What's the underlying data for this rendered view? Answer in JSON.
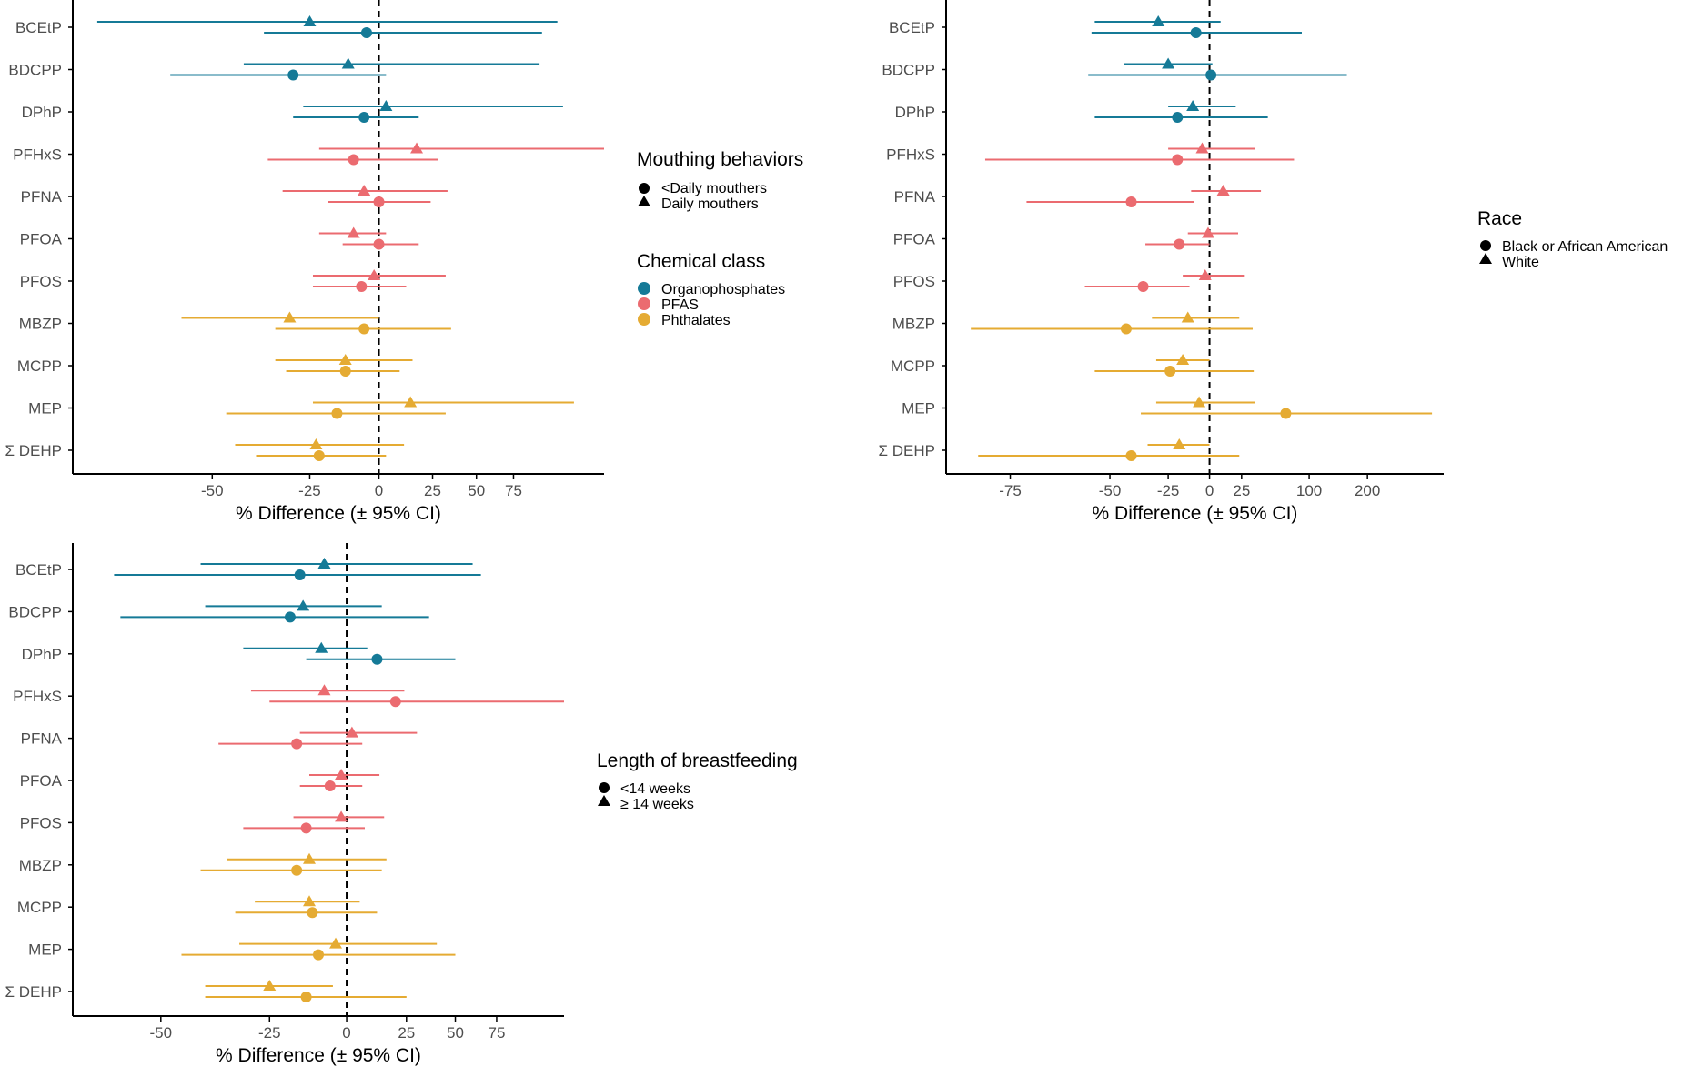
{
  "colors": {
    "Organophosphates": "#157a97",
    "PFAS": "#eb6b70",
    "Phthalates": "#e5ab33"
  },
  "chemical_legend": {
    "title": "Chemical class",
    "items": [
      {
        "label": "Organophosphates",
        "class": "Organophosphates"
      },
      {
        "label": "PFAS",
        "class": "PFAS"
      },
      {
        "label": "Phthalates",
        "class": "Phthalates"
      }
    ]
  },
  "chart_data": [
    {
      "type": "forest",
      "xlabel": "% Difference (± 95% CI)",
      "scale": "log1p",
      "xlim": [
        -72,
        155
      ],
      "xticks": [
        -50,
        -25,
        0,
        25,
        50,
        75
      ],
      "tick_labels": [
        "-50",
        "-25",
        "0",
        "25",
        "50",
        "75"
      ],
      "reference_line": 0,
      "legend": {
        "title": "Mouthing behaviors",
        "items": [
          {
            "label": "<Daily mouthers",
            "shape": "circle"
          },
          {
            "label": "Daily mouthers",
            "shape": "triangle"
          }
        ]
      },
      "categories": [
        {
          "label": "BCEtP",
          "class": "Organophosphates",
          "circle": [
            -5,
            -38,
            97
          ],
          "triangle": [
            -25,
            -69,
            110
          ]
        },
        {
          "label": "BDCPP",
          "class": "Organophosphates",
          "circle": [
            -30,
            -58,
            3
          ],
          "triangle": [
            -12,
            -43,
            95
          ]
        },
        {
          "label": "DPhP",
          "class": "Organophosphates",
          "circle": [
            -6,
            -30,
            18
          ],
          "triangle": [
            3,
            -27,
            115
          ]
        },
        {
          "label": "PFHxS",
          "class": "PFAS",
          "circle": [
            -10,
            -37,
            28
          ],
          "triangle": [
            17,
            -22,
            155
          ]
        },
        {
          "label": "PFNA",
          "class": "PFAS",
          "circle": [
            0,
            -19,
            24
          ],
          "triangle": [
            -6,
            -33,
            33
          ]
        },
        {
          "label": "PFOA",
          "class": "PFAS",
          "circle": [
            0,
            -14,
            18
          ],
          "triangle": [
            -10,
            -22,
            3
          ]
        },
        {
          "label": "PFOS",
          "class": "PFAS",
          "circle": [
            -7,
            -24,
            12
          ],
          "triangle": [
            -2,
            -24,
            32
          ]
        },
        {
          "label": "MBZP",
          "class": "Phthalates",
          "circle": [
            -6,
            -35,
            35
          ],
          "triangle": [
            -31,
            -56,
            0
          ]
        },
        {
          "label": "MCPP",
          "class": "Phthalates",
          "circle": [
            -13,
            -32,
            9
          ],
          "triangle": [
            -13,
            -35,
            15
          ]
        },
        {
          "label": "MEP",
          "class": "Phthalates",
          "circle": [
            -16,
            -47,
            32
          ],
          "triangle": [
            14,
            -24,
            125
          ]
        },
        {
          "label": "Σ DEHP",
          "class": "Phthalates",
          "circle": [
            -22,
            -40,
            3
          ],
          "triangle": [
            -23,
            -45,
            11
          ]
        }
      ]
    },
    {
      "type": "forest",
      "xlabel": "% Difference (± 95% CI)",
      "scale": "log1p",
      "xlim": [
        -84,
        410
      ],
      "xticks": [
        -75,
        -50,
        -25,
        0,
        25,
        100,
        200
      ],
      "tick_labels": [
        "-75",
        "-50",
        "-25",
        "0",
        "25",
        "100",
        "200"
      ],
      "reference_line": 0,
      "legend": {
        "title": "Race",
        "items": [
          {
            "label": "Black or African American",
            "shape": "circle"
          },
          {
            "label": "White",
            "shape": "triangle"
          }
        ]
      },
      "categories": [
        {
          "label": "BCEtP",
          "class": "Organophosphates",
          "circle": [
            -9,
            -56,
            90
          ],
          "triangle": [
            -30,
            -55,
            8
          ]
        },
        {
          "label": "BDCPP",
          "class": "Organophosphates",
          "circle": [
            1,
            -57,
            160
          ],
          "triangle": [
            -25,
            -45,
            2
          ]
        },
        {
          "label": "DPhP",
          "class": "Organophosphates",
          "circle": [
            -20,
            -55,
            50
          ],
          "triangle": [
            -11,
            -25,
            20
          ]
        },
        {
          "label": "PFHxS",
          "class": "PFAS",
          "circle": [
            -20,
            -79,
            80
          ],
          "triangle": [
            -5,
            -25,
            37
          ]
        },
        {
          "label": "PFNA",
          "class": "PFAS",
          "circle": [
            -42,
            -72,
            -10
          ],
          "triangle": [
            10,
            -12,
            43
          ]
        },
        {
          "label": "PFOA",
          "class": "PFAS",
          "circle": [
            -19,
            -36,
            0
          ],
          "triangle": [
            -1,
            -14,
            22
          ]
        },
        {
          "label": "PFOS",
          "class": "PFAS",
          "circle": [
            -37,
            -58,
            -13
          ],
          "triangle": [
            -3,
            -17,
            27
          ]
        },
        {
          "label": "MBZP",
          "class": "Phthalates",
          "circle": [
            -44,
            -81,
            35
          ],
          "triangle": [
            -14,
            -33,
            23
          ]
        },
        {
          "label": "MCPP",
          "class": "Phthalates",
          "circle": [
            -24,
            -55,
            36
          ],
          "triangle": [
            -17,
            -31,
            0
          ]
        },
        {
          "label": "MEP",
          "class": "Phthalates",
          "circle": [
            70,
            -38,
            370
          ],
          "triangle": [
            -7,
            -31,
            37
          ]
        },
        {
          "label": "Σ DEHP",
          "class": "Phthalates",
          "circle": [
            -42,
            -80,
            23
          ],
          "triangle": [
            -19,
            -35,
            0
          ]
        }
      ]
    },
    {
      "type": "forest",
      "xlabel": "% Difference (± 95% CI)",
      "scale": "log1p",
      "xlim": [
        -64,
        125
      ],
      "xticks": [
        -50,
        -25,
        0,
        25,
        50,
        75
      ],
      "tick_labels": [
        "-50",
        "-25",
        "0",
        "25",
        "50",
        "75"
      ],
      "reference_line": 0,
      "legend": {
        "title": "Length of breastfeeding",
        "items": [
          {
            "label": "<14 weeks",
            "shape": "circle"
          },
          {
            "label": "≥ 14 weeks",
            "shape": "triangle"
          }
        ]
      },
      "categories": [
        {
          "label": "BCEtP",
          "class": "Organophosphates",
          "circle": [
            -16,
            -58,
            65
          ],
          "triangle": [
            -8,
            -42,
            60
          ]
        },
        {
          "label": "BDCPP",
          "class": "Organophosphates",
          "circle": [
            -19,
            -57,
            36
          ],
          "triangle": [
            -15,
            -41,
            14
          ]
        },
        {
          "label": "DPhP",
          "class": "Organophosphates",
          "circle": [
            12,
            -14,
            50
          ],
          "triangle": [
            -9,
            -32,
            8
          ]
        },
        {
          "label": "PFHxS",
          "class": "PFAS",
          "circle": [
            20,
            -25,
            125
          ],
          "triangle": [
            -8,
            -30,
            24
          ]
        },
        {
          "label": "PFNA",
          "class": "PFAS",
          "circle": [
            -17,
            -38,
            6
          ],
          "triangle": [
            2,
            -16,
            30
          ]
        },
        {
          "label": "PFOA",
          "class": "PFAS",
          "circle": [
            -6,
            -16,
            6
          ],
          "triangle": [
            -2,
            -13,
            13
          ]
        },
        {
          "label": "PFOS",
          "class": "PFAS",
          "circle": [
            -14,
            -32,
            7
          ],
          "triangle": [
            -2,
            -18,
            15
          ]
        },
        {
          "label": "MBZP",
          "class": "Phthalates",
          "circle": [
            -17,
            -42,
            14
          ],
          "triangle": [
            -13,
            -36,
            16
          ]
        },
        {
          "label": "MCPP",
          "class": "Phthalates",
          "circle": [
            -12,
            -34,
            12
          ],
          "triangle": [
            -13,
            -29,
            5
          ]
        },
        {
          "label": "MEP",
          "class": "Phthalates",
          "circle": [
            -10,
            -46,
            50
          ],
          "triangle": [
            -4,
            -33,
            40
          ]
        },
        {
          "label": "Σ DEHP",
          "class": "Phthalates",
          "circle": [
            -14,
            -41,
            25
          ],
          "triangle": [
            -25,
            -41,
            -5
          ]
        }
      ]
    }
  ]
}
